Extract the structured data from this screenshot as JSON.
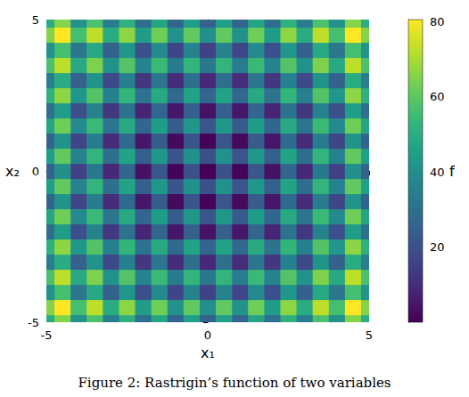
{
  "chart_data": {
    "type": "heatmap",
    "title": "Figure 2: Rastrigin’s function of two variables",
    "x_label": "x₁",
    "y_label": "x₂",
    "z_label": "f",
    "color": "viridis",
    "x": [
      -5,
      -4.5,
      -4,
      -3.5,
      -3,
      -2.5,
      -2,
      -1.5,
      -1,
      -0.5,
      0,
      0.5,
      1,
      1.5,
      2,
      2.5,
      3,
      3.5,
      4,
      4.5,
      5
    ],
    "y": [
      -5,
      -4.5,
      -4,
      -3.5,
      -3,
      -2.5,
      -2,
      -1.5,
      -1,
      -0.5,
      0,
      0.5,
      1,
      1.5,
      2,
      2.5,
      3,
      3.5,
      4,
      4.5,
      5
    ],
    "values": [
      [
        50,
        65.25,
        41,
        57.25,
        34,
        51.25,
        29,
        47.25,
        26,
        45.25,
        25,
        45.25,
        26,
        47.25,
        29,
        51.25,
        34,
        57.25,
        41,
        65.25,
        50
      ],
      [
        65.25,
        80.5,
        56.25,
        72.5,
        49.25,
        66.5,
        44.25,
        62.5,
        41.25,
        60.5,
        40.25,
        60.5,
        41.25,
        62.5,
        44.25,
        66.5,
        49.25,
        72.5,
        56.25,
        80.5,
        65.25
      ],
      [
        41,
        56.25,
        32,
        48.25,
        25,
        42.25,
        20,
        38.25,
        17,
        36.25,
        16,
        36.25,
        17,
        38.25,
        20,
        42.25,
        25,
        48.25,
        32,
        56.25,
        41
      ],
      [
        57.25,
        72.5,
        48.25,
        64.5,
        41.25,
        58.5,
        36.25,
        54.5,
        33.25,
        52.5,
        32.25,
        52.5,
        33.25,
        54.5,
        36.25,
        58.5,
        41.25,
        64.5,
        48.25,
        72.5,
        57.25
      ],
      [
        34,
        49.25,
        25,
        41.25,
        18,
        35.25,
        13,
        31.25,
        10,
        29.25,
        9,
        29.25,
        10,
        31.25,
        13,
        35.25,
        18,
        41.25,
        25,
        49.25,
        34
      ],
      [
        51.25,
        66.5,
        42.25,
        58.5,
        35.25,
        52.5,
        30.25,
        48.5,
        27.25,
        46.5,
        26.25,
        46.5,
        27.25,
        48.5,
        30.25,
        52.5,
        35.25,
        58.5,
        42.25,
        66.5,
        51.25
      ],
      [
        29,
        44.25,
        20,
        36.25,
        13,
        30.25,
        8,
        26.25,
        5,
        24.25,
        4,
        24.25,
        5,
        26.25,
        8,
        30.25,
        13,
        36.25,
        20,
        44.25,
        29
      ],
      [
        47.25,
        62.5,
        38.25,
        54.5,
        31.25,
        48.5,
        26.25,
        44.5,
        23.25,
        42.5,
        22.25,
        42.5,
        23.25,
        44.5,
        26.25,
        48.5,
        31.25,
        54.5,
        38.25,
        62.5,
        47.25
      ],
      [
        26,
        41.25,
        17,
        33.25,
        10,
        27.25,
        5,
        23.25,
        2,
        21.25,
        1,
        21.25,
        2,
        23.25,
        5,
        27.25,
        10,
        33.25,
        17,
        41.25,
        26
      ],
      [
        45.25,
        60.5,
        36.25,
        52.5,
        29.25,
        46.5,
        24.25,
        42.5,
        21.25,
        40.5,
        20.25,
        40.5,
        21.25,
        42.5,
        24.25,
        46.5,
        29.25,
        52.5,
        36.25,
        60.5,
        45.25
      ],
      [
        25,
        40.25,
        16,
        32.25,
        9,
        26.25,
        4,
        22.25,
        1,
        20.25,
        0,
        20.25,
        1,
        22.25,
        4,
        26.25,
        9,
        32.25,
        16,
        40.25,
        25
      ],
      [
        45.25,
        60.5,
        36.25,
        52.5,
        29.25,
        46.5,
        24.25,
        42.5,
        21.25,
        40.5,
        20.25,
        40.5,
        21.25,
        42.5,
        24.25,
        46.5,
        29.25,
        52.5,
        36.25,
        60.5,
        45.25
      ],
      [
        26,
        41.25,
        17,
        33.25,
        10,
        27.25,
        5,
        23.25,
        2,
        21.25,
        1,
        21.25,
        2,
        23.25,
        5,
        27.25,
        10,
        33.25,
        17,
        41.25,
        26
      ],
      [
        47.25,
        62.5,
        38.25,
        54.5,
        31.25,
        48.5,
        26.25,
        44.5,
        23.25,
        42.5,
        22.25,
        42.5,
        23.25,
        44.5,
        26.25,
        48.5,
        31.25,
        54.5,
        38.25,
        62.5,
        47.25
      ],
      [
        29,
        44.25,
        20,
        36.25,
        13,
        30.25,
        8,
        26.25,
        5,
        24.25,
        4,
        24.25,
        5,
        26.25,
        8,
        30.25,
        13,
        36.25,
        20,
        44.25,
        29
      ],
      [
        51.25,
        66.5,
        42.25,
        58.5,
        35.25,
        52.5,
        30.25,
        48.5,
        27.25,
        46.5,
        26.25,
        46.5,
        27.25,
        48.5,
        30.25,
        52.5,
        35.25,
        58.5,
        42.25,
        66.5,
        51.25
      ],
      [
        34,
        49.25,
        25,
        41.25,
        18,
        35.25,
        13,
        31.25,
        10,
        29.25,
        9,
        29.25,
        10,
        31.25,
        13,
        35.25,
        18,
        41.25,
        25,
        49.25,
        34
      ],
      [
        57.25,
        72.5,
        48.25,
        64.5,
        41.25,
        58.5,
        36.25,
        54.5,
        33.25,
        52.5,
        32.25,
        52.5,
        33.25,
        54.5,
        36.25,
        58.5,
        41.25,
        64.5,
        48.25,
        72.5,
        57.25
      ],
      [
        41,
        56.25,
        32,
        48.25,
        25,
        42.25,
        20,
        38.25,
        17,
        36.25,
        16,
        36.25,
        17,
        38.25,
        20,
        42.25,
        25,
        48.25,
        32,
        56.25,
        41
      ],
      [
        65.25,
        80.5,
        56.25,
        72.5,
        49.25,
        66.5,
        44.25,
        62.5,
        41.25,
        60.5,
        40.25,
        60.5,
        41.25,
        62.5,
        44.25,
        66.5,
        49.25,
        72.5,
        56.25,
        80.5,
        65.25
      ],
      [
        50,
        65.25,
        41,
        57.25,
        34,
        51.25,
        29,
        47.25,
        26,
        45.25,
        25,
        45.25,
        26,
        47.25,
        29,
        51.25,
        34,
        57.25,
        41,
        65.25,
        50
      ]
    ],
    "xlim": [
      -5,
      5
    ],
    "xticks": [
      -5,
      0,
      5
    ],
    "ylim": [
      -5,
      5
    ],
    "yticks": [
      -5,
      0,
      5
    ],
    "zlim": [
      0,
      80.5
    ],
    "zticks": [
      20,
      40,
      60,
      80
    ]
  }
}
